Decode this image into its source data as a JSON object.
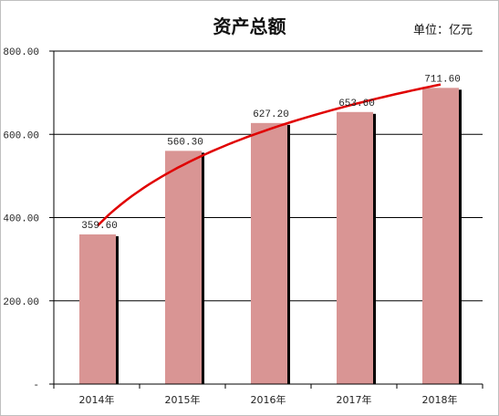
{
  "chart_data": {
    "type": "bar",
    "title": "资产总额",
    "unit_label": "单位：亿元",
    "categories": [
      "2014年",
      "2015年",
      "2016年",
      "2017年",
      "2018年"
    ],
    "values": [
      359.6,
      560.3,
      627.2,
      653.6,
      711.6
    ],
    "data_labels": [
      "359.60",
      "560.30",
      "627.20",
      "653.60",
      "711.60"
    ],
    "y_ticks": [
      "-",
      "200.00",
      "400.00",
      "600.00",
      "800.00"
    ],
    "y_tick_values": [
      0,
      200,
      400,
      600,
      800
    ],
    "ylim": [
      0,
      800
    ],
    "grid": true,
    "bar_color": "#d99594",
    "bar_shadow_color": "#000000",
    "trendline": {
      "type": "logarithmic",
      "color": "#e00000"
    }
  }
}
